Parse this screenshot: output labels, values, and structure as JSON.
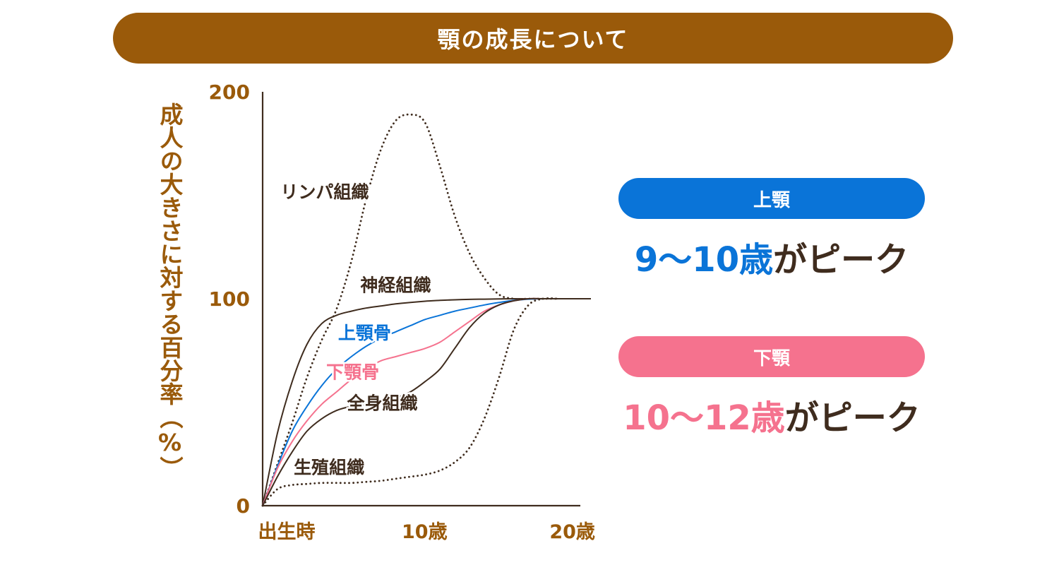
{
  "title": "顎の成長について",
  "colors": {
    "brown": "#9a5a0a",
    "dark": "#3f2c1e",
    "blue": "#0a74d8",
    "pink": "#f5728e"
  },
  "chart_data": {
    "type": "line",
    "ylabel": "成人の大きさに対する百分率（%）",
    "ylim": [
      0,
      200
    ],
    "yticks": [
      {
        "value": 0,
        "label": "0"
      },
      {
        "value": 100,
        "label": "100"
      },
      {
        "value": 200,
        "label": "200"
      }
    ],
    "xlim": [
      0,
      20
    ],
    "xticks": [
      {
        "value": 0,
        "label": "出生時"
      },
      {
        "value": 10,
        "label": "10歳"
      },
      {
        "value": 20,
        "label": "20歳"
      }
    ],
    "series": [
      {
        "name": "リンパ組織",
        "style": "dotted",
        "color": "#3f2c1e",
        "x": [
          0,
          1,
          2,
          3,
          4,
          5,
          6,
          7,
          8,
          9,
          10,
          11,
          12,
          13,
          14,
          15,
          16,
          17,
          18,
          19,
          20
        ],
        "y": [
          0,
          20,
          40,
          62,
          80,
          95,
          118,
          148,
          172,
          186,
          189,
          185,
          164,
          140,
          122,
          110,
          102,
          100,
          100,
          100,
          100
        ],
        "label_at": [
          4.2,
          152
        ]
      },
      {
        "name": "神経組織",
        "style": "solid",
        "color": "#3f2c1e",
        "x": [
          0,
          1,
          2,
          3,
          4,
          5,
          6,
          7,
          8,
          9,
          10,
          11,
          12,
          13,
          14,
          15,
          16,
          17,
          18,
          19,
          20
        ],
        "y": [
          0,
          35,
          60,
          78,
          88,
          92,
          94,
          95.5,
          96.5,
          97.5,
          98.2,
          98.8,
          99.2,
          99.5,
          99.7,
          99.8,
          99.9,
          100,
          100,
          100,
          100
        ],
        "label_at": [
          9,
          107
        ]
      },
      {
        "name": "上顎骨",
        "style": "solid",
        "color": "#0a74d8",
        "x": [
          0,
          1,
          2,
          3,
          4,
          5,
          6,
          7,
          8,
          9,
          10,
          11,
          12,
          13,
          14,
          15,
          16,
          17,
          18,
          19,
          20
        ],
        "y": [
          0,
          19,
          36,
          48,
          58,
          66,
          72,
          77,
          81,
          84,
          87,
          90,
          92,
          94,
          95.5,
          97,
          98.2,
          99.2,
          99.8,
          100,
          100
        ],
        "label_at": [
          6.9,
          84
        ]
      },
      {
        "name": "下顎骨",
        "style": "solid",
        "color": "#f5728e",
        "x": [
          0,
          1,
          2,
          3,
          4,
          5,
          6,
          7,
          8,
          9,
          10,
          11,
          12,
          13,
          14,
          15,
          16,
          17,
          18,
          19,
          20
        ],
        "y": [
          0,
          18,
          31,
          41,
          49,
          55,
          61,
          66,
          70,
          72,
          74,
          76,
          79,
          84,
          89,
          94,
          97,
          99,
          100,
          100,
          100
        ],
        "label_at": [
          6.1,
          65
        ]
      },
      {
        "name": "全身組織",
        "style": "solid",
        "color": "#3f2c1e",
        "x": [
          0,
          1,
          2,
          3,
          4,
          5,
          6,
          7,
          8,
          9,
          10,
          11,
          12,
          13,
          14,
          15,
          16,
          17,
          18,
          19,
          20
        ],
        "y": [
          0,
          14,
          26,
          36,
          42,
          46,
          48,
          49,
          50,
          52,
          55,
          60,
          66,
          76,
          86,
          93,
          97,
          99,
          100,
          100,
          100
        ],
        "label_at": [
          8.1,
          50
        ]
      },
      {
        "name": "生殖組織",
        "style": "dotted",
        "color": "#3f2c1e",
        "x": [
          0,
          1,
          2,
          3,
          4,
          5,
          6,
          7,
          8,
          9,
          10,
          11,
          12,
          13,
          14,
          15,
          16,
          17,
          18,
          19,
          20
        ],
        "y": [
          0,
          8,
          10,
          10.5,
          11,
          11,
          11,
          11.5,
          12,
          13,
          14,
          15,
          17,
          21,
          28,
          42,
          62,
          85,
          97,
          100,
          100
        ],
        "label_at": [
          4.5,
          19
        ]
      }
    ]
  },
  "upper_jaw": {
    "label": "上顎",
    "range": "9〜10歳",
    "suffix": "がピーク"
  },
  "lower_jaw": {
    "label": "下顎",
    "range": "10〜12歳",
    "suffix": "がピーク"
  }
}
